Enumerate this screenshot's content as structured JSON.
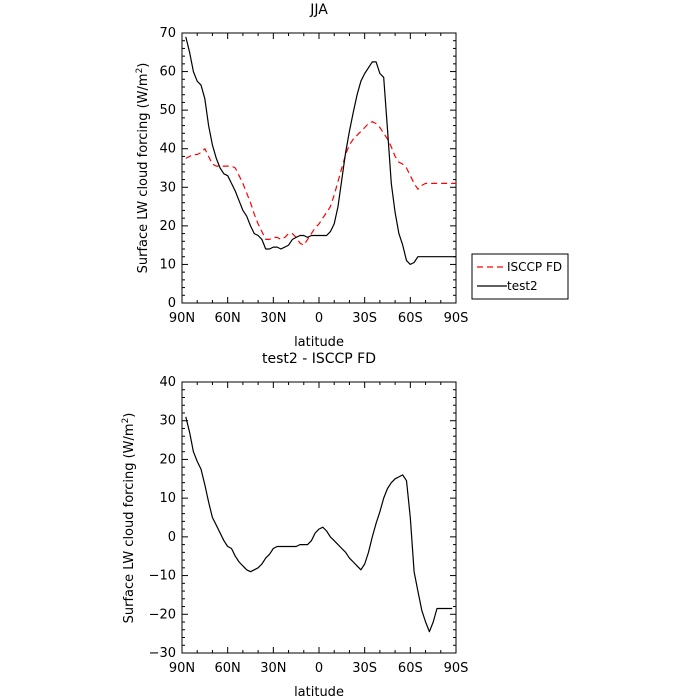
{
  "chart_data": [
    {
      "type": "line",
      "title": "JJA",
      "xlabel": "latitude",
      "ylabel": "Surface LW cloud forcing (W/m",
      "ylabel_sup": "2",
      "ylabel_tail": ")",
      "x_ticks": [
        90,
        60,
        30,
        0,
        -30,
        -60,
        -90
      ],
      "x_tick_labels": [
        "90N",
        "60N",
        "30N",
        "0",
        "30S",
        "60S",
        "90S"
      ],
      "xlim": [
        90,
        -90
      ],
      "ylim": [
        0,
        70
      ],
      "y_ticks": [
        0,
        10,
        20,
        30,
        40,
        50,
        60,
        70
      ],
      "y_tick_labels": [
        "0",
        "10",
        "20",
        "30",
        "40",
        "50",
        "60",
        "70"
      ],
      "grid": false,
      "legend": {
        "placement": "outside-right",
        "entries": [
          "ISCCP FD",
          "test2"
        ]
      },
      "series": [
        {
          "name": "ISCCP FD",
          "color": "#ff0000",
          "dash": "dashed",
          "x": [
            87.5,
            85,
            82.5,
            80,
            77.5,
            75,
            72.5,
            70,
            67.5,
            65,
            62.5,
            60,
            57.5,
            55,
            52.5,
            50,
            47.5,
            45,
            42.5,
            40,
            37.5,
            35,
            32.5,
            30,
            27.5,
            25,
            22.5,
            20,
            17.5,
            15,
            12.5,
            10,
            7.5,
            5,
            2.5,
            0,
            -2.5,
            -5,
            -7.5,
            -10,
            -12.5,
            -15,
            -17.5,
            -20,
            -22.5,
            -25,
            -27.5,
            -30,
            -32.5,
            -35,
            -37.5,
            -40,
            -42.5,
            -45,
            -47.5,
            -50,
            -52.5,
            -55,
            -57.5,
            -60,
            -62.5,
            -65,
            -67.5,
            -70,
            -72.5,
            -75,
            -77.5,
            -80,
            -82.5,
            -85,
            -87.5,
            -90
          ],
          "values": [
            37.5,
            38.0,
            38.5,
            38.5,
            39.0,
            40.0,
            38.0,
            36.0,
            35.5,
            35.5,
            35.5,
            35.5,
            35.5,
            35.0,
            33.0,
            31.0,
            28.5,
            26.0,
            23.0,
            20.5,
            18.5,
            16.5,
            16.5,
            17.0,
            17.0,
            16.5,
            17.0,
            18.0,
            18.0,
            17.0,
            15.5,
            15.0,
            16.5,
            18.0,
            19.5,
            20.5,
            22.0,
            23.5,
            25.0,
            28.0,
            31.5,
            35.0,
            38.5,
            41.0,
            42.5,
            43.5,
            44.5,
            45.5,
            46.5,
            47.0,
            46.5,
            45.5,
            44.0,
            42.5,
            40.5,
            38.0,
            36.5,
            36.0,
            35.0,
            33.0,
            31.0,
            29.5,
            30.5,
            31.0,
            31.0,
            31.0,
            31.0,
            31.0,
            31.0,
            31.0,
            31.0,
            31.0
          ]
        },
        {
          "name": "test2",
          "color": "#000000",
          "dash": "solid",
          "x": [
            87.5,
            85,
            82.5,
            80,
            77.5,
            75,
            72.5,
            70,
            67.5,
            65,
            62.5,
            60,
            57.5,
            55,
            52.5,
            50,
            47.5,
            45,
            42.5,
            40,
            37.5,
            35,
            32.5,
            30,
            27.5,
            25,
            22.5,
            20,
            17.5,
            15,
            12.5,
            10,
            7.5,
            5,
            2.5,
            0,
            -2.5,
            -5,
            -7.5,
            -10,
            -12.5,
            -15,
            -17.5,
            -20,
            -22.5,
            -25,
            -27.5,
            -30,
            -32.5,
            -35,
            -37.5,
            -40,
            -42.5,
            -45,
            -47.5,
            -50,
            -52.5,
            -55,
            -57.5,
            -60,
            -62.5,
            -65,
            -67.5,
            -70,
            -72.5,
            -75,
            -77.5,
            -80,
            -82.5,
            -85,
            -87.5,
            -90
          ],
          "values": [
            69.0,
            65.0,
            60.0,
            57.5,
            56.5,
            53.0,
            46.0,
            41.0,
            37.5,
            35.0,
            33.5,
            33.0,
            31.0,
            29.0,
            26.5,
            24.0,
            22.5,
            20.0,
            18.0,
            17.5,
            16.5,
            14.0,
            14.0,
            14.5,
            14.5,
            14.0,
            14.5,
            15.0,
            16.5,
            17.0,
            17.5,
            17.5,
            17.0,
            17.5,
            17.5,
            17.5,
            17.5,
            17.5,
            18.5,
            20.5,
            25.0,
            32.0,
            39.0,
            44.5,
            49.5,
            54.0,
            57.5,
            59.5,
            61.0,
            62.5,
            62.5,
            59.5,
            58.5,
            45.0,
            31.0,
            23.5,
            18.0,
            15.0,
            11.0,
            10.0,
            10.5,
            12.0,
            12.0,
            12.0,
            12.0,
            12.0,
            12.0,
            12.0,
            12.0,
            12.0,
            12.0,
            12.0
          ]
        }
      ]
    },
    {
      "type": "line",
      "title": "test2 - ISCCP FD",
      "xlabel": "latitude",
      "ylabel": "Surface LW cloud forcing (W/m",
      "ylabel_sup": "2",
      "ylabel_tail": ")",
      "x_ticks": [
        90,
        60,
        30,
        0,
        -30,
        -60,
        -90
      ],
      "x_tick_labels": [
        "90N",
        "60N",
        "30N",
        "0",
        "30S",
        "60S",
        "90S"
      ],
      "xlim": [
        90,
        -90
      ],
      "ylim": [
        -30,
        40
      ],
      "y_ticks": [
        -30,
        -20,
        -10,
        0,
        10,
        20,
        30,
        40
      ],
      "y_tick_labels": [
        "−30",
        "−20",
        "−10",
        "0",
        "10",
        "20",
        "30",
        "40"
      ],
      "grid": false,
      "series": [
        {
          "color": "#000000",
          "dash": "solid",
          "x": [
            87.5,
            85,
            82.5,
            80,
            77.5,
            75,
            72.5,
            70,
            67.5,
            65,
            62.5,
            60,
            57.5,
            55,
            52.5,
            50,
            47.5,
            45,
            42.5,
            40,
            37.5,
            35,
            32.5,
            30,
            27.5,
            25,
            22.5,
            20,
            17.5,
            15,
            12.5,
            10,
            7.5,
            5,
            2.5,
            0,
            -2.5,
            -5,
            -7.5,
            -10,
            -12.5,
            -15,
            -17.5,
            -20,
            -22.5,
            -25,
            -27.5,
            -30,
            -32.5,
            -35,
            -37.5,
            -40,
            -42.5,
            -45,
            -47.5,
            -50,
            -52.5,
            -55,
            -57.5,
            -60,
            -62.5,
            -65,
            -67.5,
            -70,
            -72.5,
            -75,
            -77.5,
            -80,
            -82.5,
            -85,
            -87.5
          ],
          "values": [
            31.0,
            27.0,
            22.0,
            19.5,
            17.5,
            13.5,
            9.0,
            5.0,
            3.0,
            1.0,
            -1.0,
            -2.5,
            -3.0,
            -5.0,
            -6.5,
            -7.5,
            -8.5,
            -9.0,
            -8.5,
            -8.0,
            -7.0,
            -5.5,
            -4.5,
            -3.0,
            -2.5,
            -2.5,
            -2.5,
            -2.5,
            -2.5,
            -2.5,
            -2.0,
            -2.0,
            -2.0,
            -1.0,
            1.0,
            2.0,
            2.5,
            1.5,
            0.0,
            -1.0,
            -2.0,
            -3.0,
            -4.0,
            -5.5,
            -6.5,
            -7.5,
            -8.5,
            -7.0,
            -4.0,
            0.0,
            3.5,
            6.5,
            10.0,
            12.5,
            14.0,
            15.0,
            15.5,
            16.0,
            14.5,
            5.0,
            -9.0,
            -14.0,
            -19.0,
            -22.0,
            -24.5,
            -22.0,
            -18.5,
            -18.5,
            -18.5,
            -18.5,
            -18.5
          ]
        }
      ]
    }
  ]
}
